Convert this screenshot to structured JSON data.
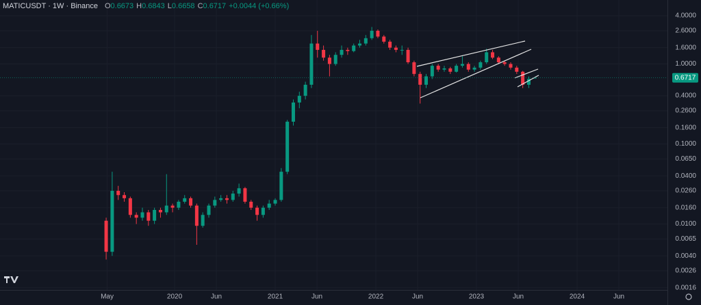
{
  "chart_data": {
    "type": "candlestick",
    "title": "MATICUSDT · 1W · Binance",
    "legend_labels": [
      "O",
      "H",
      "L",
      "C"
    ],
    "change_label": "+0.0044 (+0.66%)",
    "log_scale": true,
    "grid": true,
    "up_color": "#089981",
    "down_color": "#f23645",
    "xlim": [
      2018.265,
      2024.898
    ],
    "ylim": [
      0.0015,
      6.3
    ],
    "xticks": [
      {
        "value": 2019.33,
        "label": "May"
      },
      2020,
      {
        "value": 2020.415,
        "label": "Jun"
      },
      2021,
      {
        "value": 2021.415,
        "label": "Jun"
      },
      2022,
      {
        "value": 2022.415,
        "label": "Jun"
      },
      2023,
      {
        "value": 2023.415,
        "label": "Jun"
      },
      2024,
      {
        "value": 2024.415,
        "label": "Jun"
      }
    ],
    "yticks": [
      {
        "value": 4,
        "label": "4.0000"
      },
      {
        "value": 2.6,
        "label": "2.6000"
      },
      {
        "value": 1.6,
        "label": "1.6000"
      },
      {
        "value": 1,
        "label": "1.0000"
      },
      {
        "value": 0.4,
        "label": "0.4000"
      },
      {
        "value": 0.26,
        "label": "0.2600"
      },
      {
        "value": 0.16,
        "label": "0.1600"
      },
      {
        "value": 0.1,
        "label": "0.1000"
      },
      {
        "value": 0.065,
        "label": "0.0650"
      },
      {
        "value": 0.04,
        "label": "0.0400"
      },
      {
        "value": 0.026,
        "label": "0.0260"
      },
      {
        "value": 0.016,
        "label": "0.0160"
      },
      {
        "value": 0.01,
        "label": "0.0100"
      },
      {
        "value": 0.0065,
        "label": "0.0065"
      },
      {
        "value": 0.004,
        "label": "0.0040"
      },
      {
        "value": 0.0026,
        "label": "0.0026"
      },
      {
        "value": 0.0016,
        "label": "0.0016"
      }
    ],
    "x": [
      2019.32,
      2019.38,
      2019.44,
      2019.5,
      2019.56,
      2019.62,
      2019.68,
      2019.74,
      2019.8,
      2019.86,
      2019.92,
      2019.98,
      2020.04,
      2020.1,
      2020.16,
      2020.22,
      2020.28,
      2020.34,
      2020.4,
      2020.46,
      2020.52,
      2020.58,
      2020.64,
      2020.7,
      2020.76,
      2020.82,
      2020.88,
      2020.94,
      2021.0,
      2021.06,
      2021.12,
      2021.18,
      2021.24,
      2021.3,
      2021.36,
      2021.42,
      2021.48,
      2021.54,
      2021.6,
      2021.66,
      2021.72,
      2021.78,
      2021.84,
      2021.9,
      2021.96,
      2022.02,
      2022.08,
      2022.14,
      2022.2,
      2022.26,
      2022.32,
      2022.38,
      2022.44,
      2022.5,
      2022.56,
      2022.62,
      2022.68,
      2022.74,
      2022.8,
      2022.86,
      2022.92,
      2022.98,
      2023.04,
      2023.1,
      2023.16,
      2023.22,
      2023.28,
      2023.34,
      2023.4,
      2023.46,
      2023.52,
      2023.58
    ],
    "open": [
      0.011,
      0.0045,
      0.026,
      0.023,
      0.021,
      0.013,
      0.012,
      0.014,
      0.011,
      0.015,
      0.014,
      0.017,
      0.016,
      0.019,
      0.021,
      0.017,
      0.0095,
      0.013,
      0.017,
      0.02,
      0.021,
      0.02,
      0.024,
      0.028,
      0.019,
      0.016,
      0.013,
      0.016,
      0.018,
      0.02,
      0.045,
      0.19,
      0.33,
      0.4,
      0.55,
      1.8,
      1.5,
      1.2,
      1.0,
      1.3,
      1.5,
      1.45,
      1.7,
      1.8,
      2.1,
      2.6,
      2.2,
      1.9,
      1.6,
      1.5,
      1.5,
      1.05,
      0.75,
      0.55,
      0.7,
      0.95,
      0.85,
      0.88,
      0.8,
      0.95,
      1.0,
      0.85,
      0.9,
      1.05,
      1.4,
      1.2,
      1.05,
      1.0,
      0.9,
      0.8,
      0.55,
      0.6673
    ],
    "high": [
      0.012,
      0.045,
      0.03,
      0.025,
      0.022,
      0.014,
      0.016,
      0.015,
      0.016,
      0.016,
      0.042,
      0.018,
      0.02,
      0.023,
      0.022,
      0.018,
      0.014,
      0.018,
      0.022,
      0.023,
      0.023,
      0.026,
      0.032,
      0.029,
      0.02,
      0.017,
      0.017,
      0.02,
      0.021,
      0.05,
      0.2,
      0.36,
      0.45,
      0.6,
      2.3,
      2.6,
      1.7,
      1.3,
      1.4,
      1.7,
      1.6,
      1.8,
      2.0,
      2.3,
      2.9,
      2.7,
      2.3,
      2.0,
      1.7,
      1.7,
      1.6,
      1.1,
      0.8,
      0.75,
      1.0,
      1.0,
      0.95,
      0.92,
      1.0,
      1.25,
      1.05,
      0.95,
      1.1,
      1.55,
      1.5,
      1.25,
      1.1,
      1.05,
      0.95,
      0.82,
      0.7,
      0.6843
    ],
    "low": [
      0.0036,
      0.004,
      0.02,
      0.019,
      0.012,
      0.01,
      0.011,
      0.0095,
      0.01,
      0.012,
      0.013,
      0.014,
      0.015,
      0.018,
      0.016,
      0.0055,
      0.009,
      0.012,
      0.016,
      0.019,
      0.018,
      0.019,
      0.022,
      0.018,
      0.015,
      0.011,
      0.012,
      0.015,
      0.017,
      0.019,
      0.042,
      0.17,
      0.28,
      0.36,
      0.5,
      1.2,
      1.1,
      0.7,
      0.95,
      1.2,
      1.3,
      1.4,
      1.6,
      1.7,
      2.0,
      2.1,
      1.8,
      1.5,
      1.4,
      1.3,
      1.0,
      0.7,
      0.32,
      0.5,
      0.65,
      0.8,
      0.8,
      0.75,
      0.78,
      0.9,
      0.8,
      0.8,
      0.85,
      1.0,
      1.15,
      1.0,
      0.95,
      0.85,
      0.75,
      0.5,
      0.5,
      0.6658
    ],
    "close": [
      0.0045,
      0.026,
      0.023,
      0.021,
      0.013,
      0.012,
      0.014,
      0.011,
      0.015,
      0.014,
      0.017,
      0.016,
      0.019,
      0.021,
      0.017,
      0.0095,
      0.013,
      0.017,
      0.02,
      0.021,
      0.02,
      0.024,
      0.028,
      0.019,
      0.016,
      0.013,
      0.016,
      0.018,
      0.02,
      0.045,
      0.19,
      0.33,
      0.4,
      0.55,
      1.8,
      1.5,
      1.2,
      1.0,
      1.3,
      1.5,
      1.45,
      1.7,
      1.8,
      2.1,
      2.6,
      2.2,
      1.9,
      1.6,
      1.5,
      1.5,
      1.05,
      0.75,
      0.55,
      0.7,
      0.95,
      0.85,
      0.88,
      0.8,
      0.95,
      1.0,
      0.85,
      0.9,
      1.05,
      1.4,
      1.2,
      1.05,
      1.0,
      0.9,
      0.8,
      0.55,
      0.65,
      0.6717
    ]
  }
}
